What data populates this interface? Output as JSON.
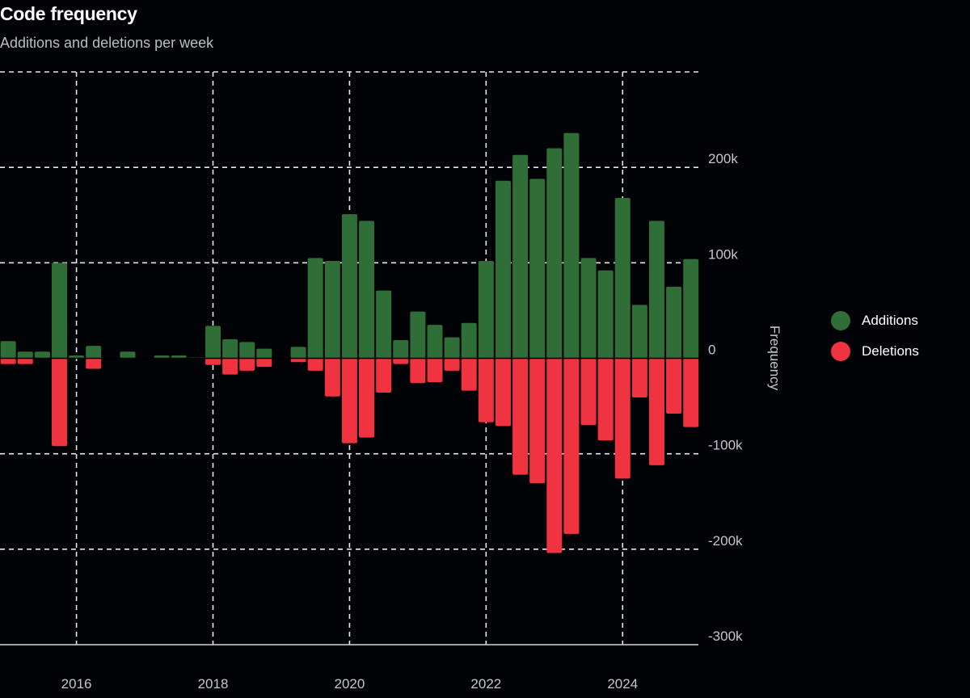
{
  "chart_data": {
    "type": "bar",
    "title": "Code frequency",
    "subtitle": "Additions and deletions per week",
    "ylabel": "Frequency",
    "ylim": [
      -300000,
      300000
    ],
    "yticks": [
      200000,
      100000,
      0,
      -100000,
      -200000,
      -300000
    ],
    "ytick_labels": [
      "200k",
      "100k",
      "0",
      "-100k",
      "-200k",
      "-300k"
    ],
    "xlim": [
      2014.88,
      2025.11
    ],
    "xticks": [
      2016,
      2018,
      2020,
      2022,
      2024
    ],
    "xtick_labels": [
      "2016",
      "2018",
      "2020",
      "2022",
      "2024"
    ],
    "grid": true,
    "legend_position": "right",
    "x": [
      2015.0,
      2015.25,
      2015.5,
      2015.75,
      2016.0,
      2016.25,
      2016.5,
      2016.75,
      2017.0,
      2017.25,
      2017.5,
      2017.75,
      2018.0,
      2018.25,
      2018.5,
      2018.75,
      2019.0,
      2019.25,
      2019.5,
      2019.75,
      2020.0,
      2020.25,
      2020.5,
      2020.75,
      2021.0,
      2021.25,
      2021.5,
      2021.75,
      2022.0,
      2022.25,
      2022.5,
      2022.75,
      2023.0,
      2023.25,
      2023.5,
      2023.75,
      2024.0,
      2024.25,
      2024.5,
      2024.75,
      2025.0
    ],
    "series": [
      {
        "name": "Additions",
        "color": "#2f6e37",
        "values": [
          18000,
          7000,
          7000,
          100000,
          3000,
          13000,
          0,
          7000,
          0,
          3000,
          3000,
          1000,
          34000,
          20000,
          17000,
          10000,
          0,
          12000,
          105000,
          102000,
          151000,
          144000,
          71000,
          19000,
          49000,
          35000,
          22000,
          37000,
          102000,
          186000,
          213000,
          188000,
          220000,
          236000,
          105000,
          92000,
          168000,
          56000,
          144000,
          75000,
          104000
        ]
      },
      {
        "name": "Deletions",
        "color": "#ef3340",
        "values": [
          -6000,
          -6000,
          0,
          -92000,
          0,
          -11000,
          0,
          0,
          0,
          0,
          0,
          0,
          -7000,
          -17000,
          -13000,
          -9000,
          0,
          -4000,
          -13000,
          -40000,
          -89000,
          -83000,
          -36000,
          -6000,
          -26000,
          -25000,
          -13000,
          -34000,
          -67000,
          -71000,
          -122000,
          -131000,
          -204000,
          -184000,
          -70000,
          -86000,
          -126000,
          -41000,
          -112000,
          -58000,
          -72000
        ]
      }
    ]
  }
}
